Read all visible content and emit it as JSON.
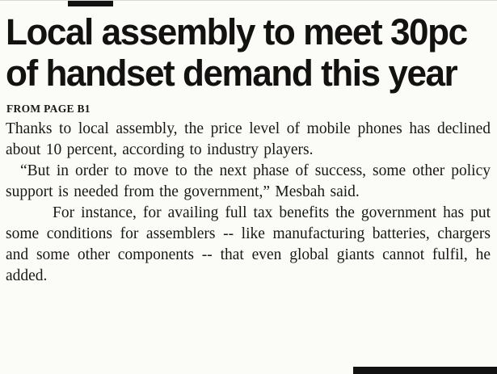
{
  "page": {
    "background_color": "#fbfbf8",
    "text_color": "#1a1815"
  },
  "article": {
    "headline_lines": [
      "Local assembly to meet 30pc",
      "of handset demand this year"
    ],
    "kicker": "FROM PAGE B1",
    "paragraphs": [
      {
        "indent": "none",
        "text": "Thanks to local assembly, the price level of mobile phones has declined about 10 percent, according to industry players."
      },
      {
        "indent": "small",
        "text": "“But in order to move to the next phase of success, some other policy support is needed from the government,” Mesbah said."
      },
      {
        "indent": "large",
        "text": "For instance, for availing full tax benefits the government has put some conditions for assemblers -- like manufacturing batteries, chargers and some other components -- that even global giants cannot fulfil, he added."
      }
    ]
  }
}
